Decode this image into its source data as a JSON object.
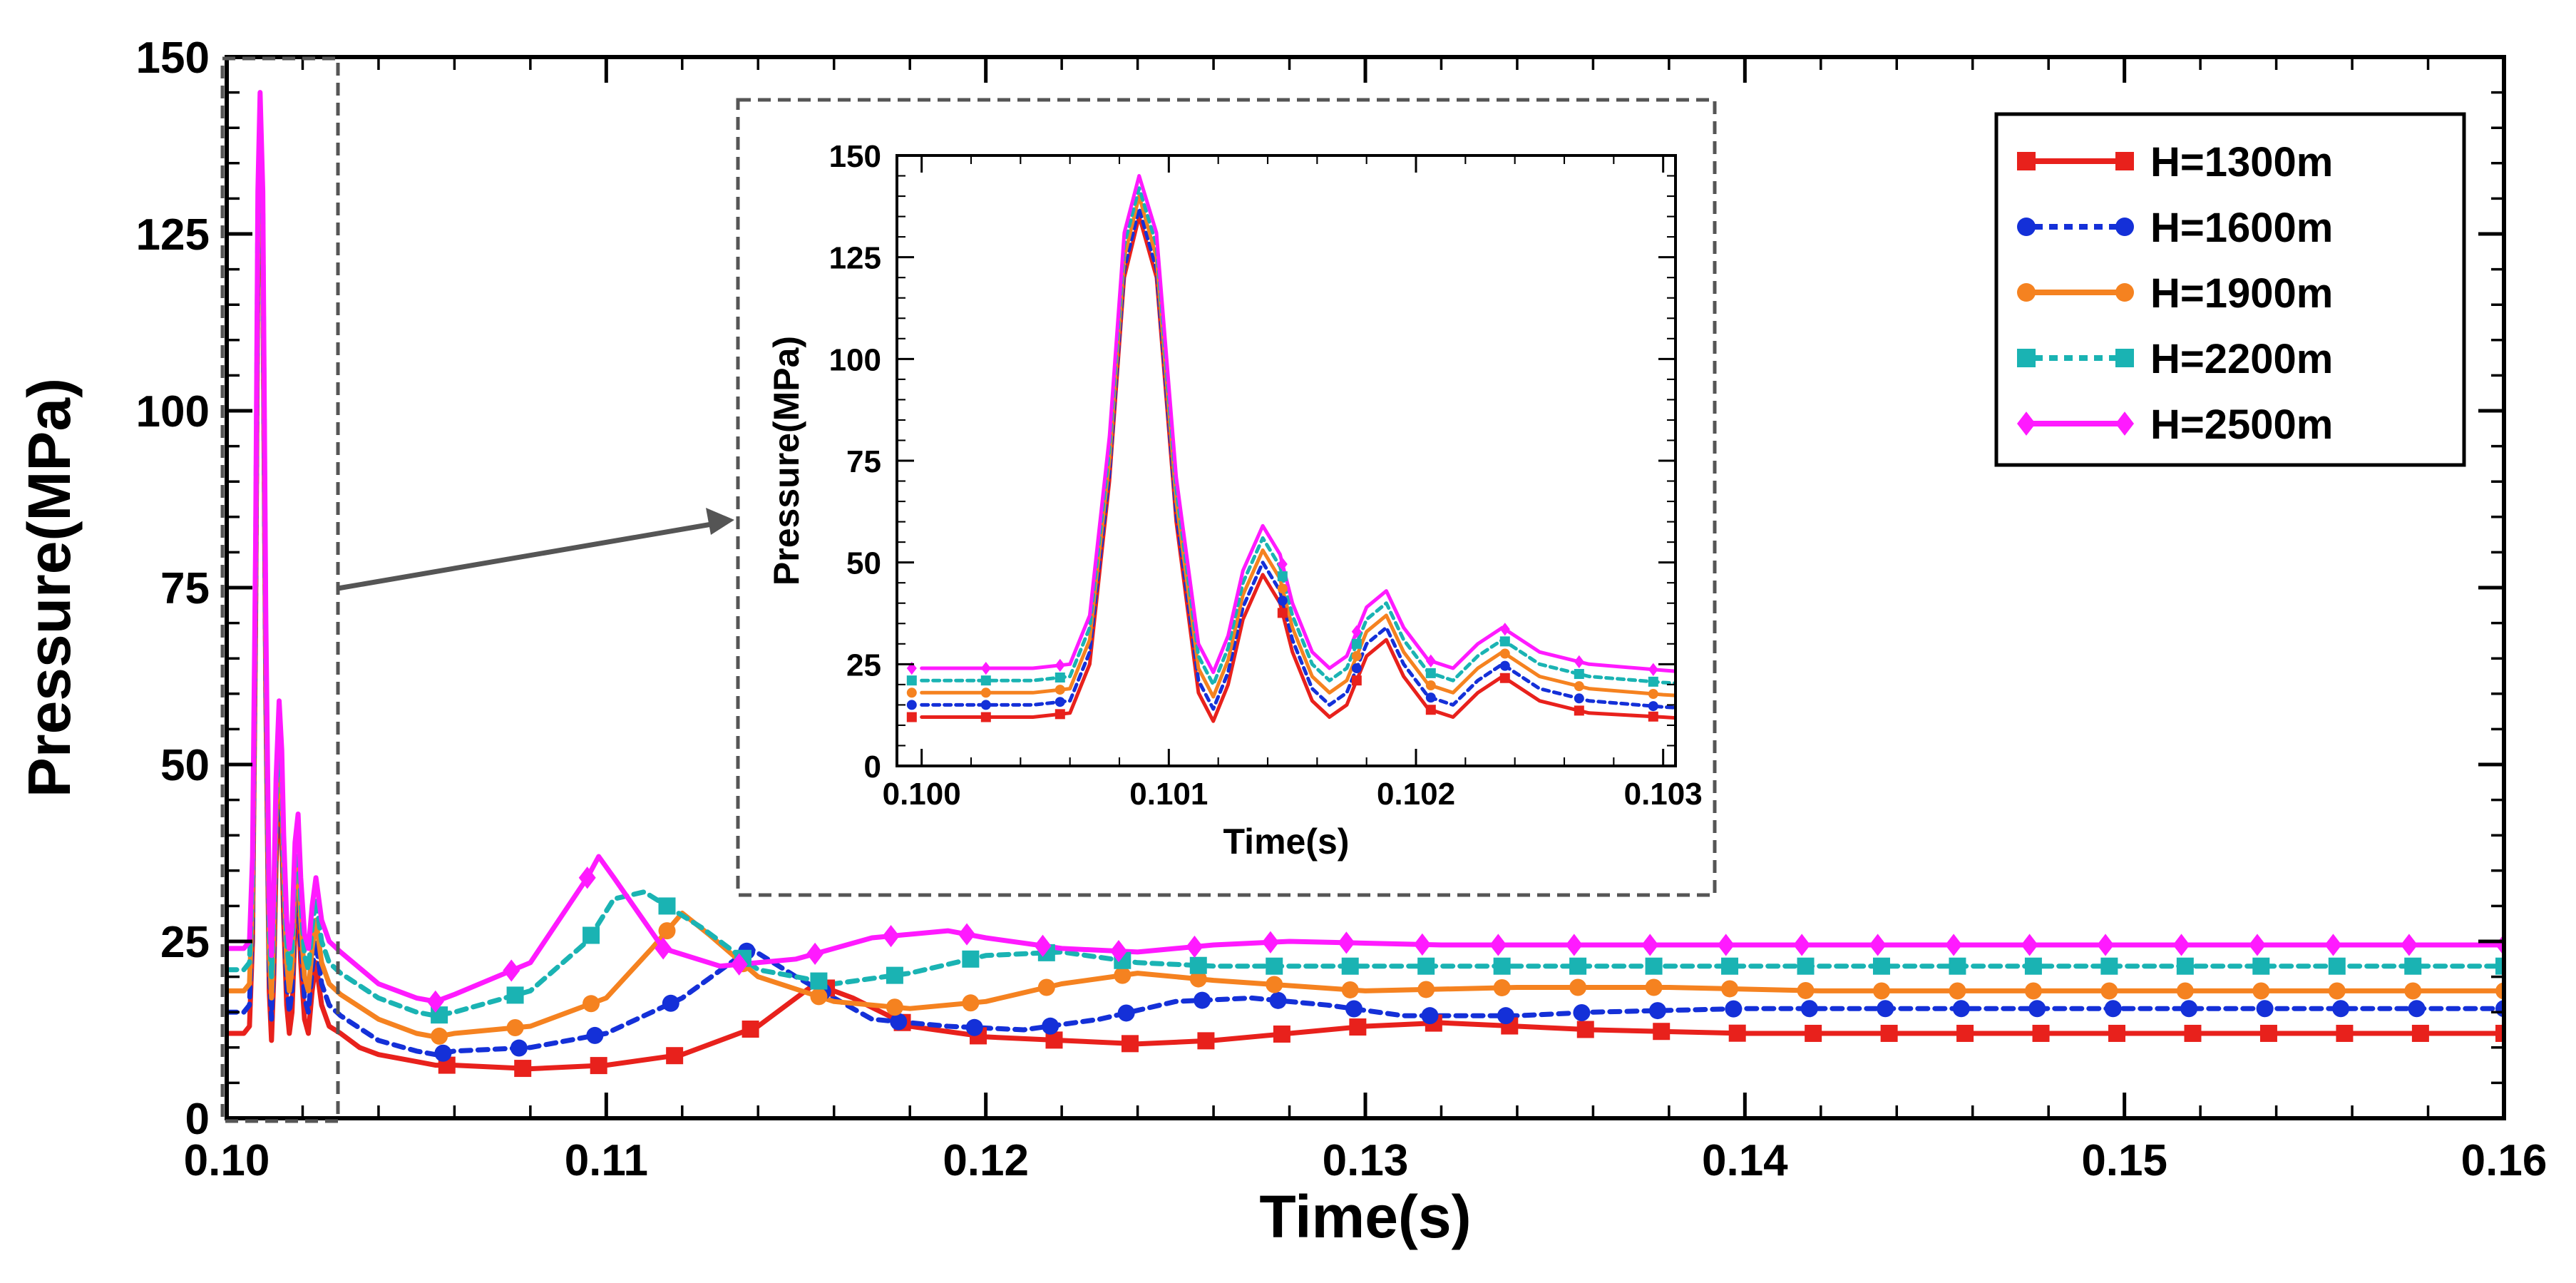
{
  "chart_data": {
    "type": "line",
    "main": {
      "xlabel": "Time(s)",
      "ylabel": "Pressure(MPa)",
      "xlim": [
        0.1,
        0.16
      ],
      "ylim": [
        0,
        150
      ],
      "xticks": [
        0.1,
        0.11,
        0.12,
        0.13,
        0.14,
        0.15,
        0.16
      ],
      "xtick_labels": [
        "0.10",
        "0.11",
        "0.12",
        "0.13",
        "0.14",
        "0.15",
        "0.16"
      ],
      "yticks": [
        0,
        25,
        50,
        75,
        100,
        125,
        150
      ],
      "ytick_labels": [
        "0",
        "25",
        "50",
        "75",
        "100",
        "125",
        "150"
      ],
      "zoom_region": [
        0.1,
        0.1031
      ]
    },
    "inset": {
      "xlabel": "Time(s)",
      "ylabel": "Pressure(MPa)",
      "xlim": [
        0.0999,
        0.10305
      ],
      "ylim": [
        0,
        150
      ],
      "xticks": [
        0.1,
        0.101,
        0.102,
        0.103
      ],
      "xtick_labels": [
        "0.100",
        "0.101",
        "0.102",
        "0.103"
      ],
      "yticks": [
        0,
        25,
        50,
        75,
        100,
        125,
        150
      ],
      "ytick_labels": [
        "0",
        "25",
        "50",
        "75",
        "100",
        "125",
        "150"
      ]
    },
    "series": [
      {
        "name": "H=1300m",
        "color": "#e8211c",
        "dash": "solid",
        "marker": "square",
        "x": [
          0.1,
          0.10045,
          0.1006,
          0.10068,
          0.10076,
          0.10082,
          0.10088,
          0.10095,
          0.10103,
          0.10112,
          0.10118,
          0.10124,
          0.1013,
          0.10138,
          0.10145,
          0.1015,
          0.10158,
          0.10165,
          0.10172,
          0.1018,
          0.10188,
          0.10195,
          0.10205,
          0.10215,
          0.10225,
          0.10235,
          0.1025,
          0.1027,
          0.103,
          0.1035,
          0.104,
          0.105,
          0.1055,
          0.106,
          0.108,
          0.11,
          0.112,
          0.114,
          0.1155,
          0.1165,
          0.118,
          0.12,
          0.122,
          0.124,
          0.126,
          0.128,
          0.13,
          0.132,
          0.134,
          0.136,
          0.14,
          0.145,
          0.15,
          0.155,
          0.16
        ],
        "y": [
          12,
          12,
          13,
          25,
          70,
          120,
          135,
          120,
          60,
          18,
          11,
          20,
          36,
          47,
          40,
          28,
          16,
          12,
          15,
          27,
          31,
          22,
          14,
          12,
          18,
          22,
          16,
          13,
          12,
          10,
          9,
          8,
          7.5,
          7.5,
          7,
          7.5,
          9,
          13,
          19,
          17,
          13,
          11.5,
          11,
          10.5,
          11,
          12,
          13,
          13.5,
          13,
          12.5,
          12,
          12,
          12,
          12,
          12
        ],
        "marker_x": [
          0.1058,
          0.1078,
          0.1098,
          0.1118,
          0.1138,
          0.1158,
          0.1178,
          0.1198,
          0.1218,
          0.1238,
          0.1258,
          0.1278,
          0.1298,
          0.1318,
          0.1338,
          0.1358,
          0.1378,
          0.1398,
          0.1418,
          0.1438,
          0.1458,
          0.1478,
          0.1498,
          0.1518,
          0.1538,
          0.1558,
          0.1578,
          0.16
        ]
      },
      {
        "name": "H=1600m",
        "color": "#1430d8",
        "dash": "dotted",
        "marker": "circle",
        "x": [
          0.1,
          0.10045,
          0.1006,
          0.10068,
          0.10076,
          0.10082,
          0.10088,
          0.10095,
          0.10103,
          0.10112,
          0.10118,
          0.10124,
          0.1013,
          0.10138,
          0.10145,
          0.1015,
          0.10158,
          0.10165,
          0.10172,
          0.1018,
          0.10188,
          0.10195,
          0.10205,
          0.10215,
          0.10225,
          0.10235,
          0.1025,
          0.1027,
          0.103,
          0.104,
          0.105,
          0.1055,
          0.106,
          0.108,
          0.11,
          0.112,
          0.1138,
          0.115,
          0.117,
          0.119,
          0.121,
          0.123,
          0.125,
          0.127,
          0.129,
          0.131,
          0.134,
          0.136,
          0.14,
          0.145,
          0.15,
          0.155,
          0.16
        ],
        "y": [
          15,
          15,
          16,
          28,
          72,
          122,
          137,
          122,
          62,
          21,
          14,
          23,
          39,
          50,
          43,
          31,
          19,
          15,
          18,
          30,
          34,
          25,
          17,
          15,
          21,
          25,
          19,
          16,
          14.5,
          11,
          9.5,
          9,
          9.5,
          10,
          12,
          17,
          24,
          20,
          14,
          13,
          12.5,
          14,
          16.5,
          17,
          16,
          14.5,
          14.5,
          15,
          15.5,
          15.5,
          15.5,
          15.5,
          15.5
        ],
        "marker_x": [
          0.1057,
          0.1077,
          0.1097,
          0.1117,
          0.1137,
          0.1157,
          0.1177,
          0.1197,
          0.1217,
          0.1237,
          0.1257,
          0.1277,
          0.1297,
          0.1317,
          0.1337,
          0.1357,
          0.1377,
          0.1397,
          0.1417,
          0.1437,
          0.1457,
          0.1477,
          0.1497,
          0.1517,
          0.1537,
          0.1557,
          0.1577,
          0.16
        ]
      },
      {
        "name": "H=1900m",
        "color": "#f58220",
        "dash": "solid",
        "marker": "circle",
        "x": [
          0.1,
          0.10045,
          0.1006,
          0.10068,
          0.10076,
          0.10082,
          0.10088,
          0.10095,
          0.10103,
          0.10112,
          0.10118,
          0.10124,
          0.1013,
          0.10138,
          0.10145,
          0.1015,
          0.10158,
          0.10165,
          0.10172,
          0.1018,
          0.10188,
          0.10195,
          0.10205,
          0.10215,
          0.10225,
          0.10235,
          0.1025,
          0.1027,
          0.103,
          0.104,
          0.105,
          0.1055,
          0.106,
          0.108,
          0.11,
          0.1112,
          0.112,
          0.1127,
          0.114,
          0.116,
          0.118,
          0.12,
          0.122,
          0.124,
          0.126,
          0.13,
          0.134,
          0.138,
          0.142,
          0.15,
          0.16
        ],
        "y": [
          18,
          18,
          19,
          31,
          75,
          125,
          140,
          125,
          65,
          24,
          17,
          26,
          42,
          53,
          46,
          34,
          22,
          18,
          21,
          33,
          37,
          28,
          20,
          18,
          24,
          28,
          22,
          19,
          17.5,
          14,
          12,
          11.5,
          12,
          13,
          17,
          24,
          29,
          26,
          20,
          16.5,
          15.5,
          16.5,
          19,
          20.5,
          19.5,
          18,
          18.5,
          18.5,
          18,
          18,
          18
        ],
        "marker_x": [
          0.1056,
          0.1076,
          0.1096,
          0.1116,
          0.1136,
          0.1156,
          0.1176,
          0.1196,
          0.1216,
          0.1236,
          0.1256,
          0.1276,
          0.1296,
          0.1316,
          0.1336,
          0.1356,
          0.1376,
          0.1396,
          0.1416,
          0.1436,
          0.1456,
          0.1476,
          0.1496,
          0.1516,
          0.1536,
          0.1556,
          0.1576,
          0.16
        ]
      },
      {
        "name": "H=2200m",
        "color": "#1ab3b3",
        "dash": "dotted",
        "marker": "square",
        "x": [
          0.1,
          0.10045,
          0.1006,
          0.10068,
          0.10076,
          0.10082,
          0.10088,
          0.10095,
          0.10103,
          0.10112,
          0.10118,
          0.10124,
          0.1013,
          0.10138,
          0.10145,
          0.1015,
          0.10158,
          0.10165,
          0.10172,
          0.1018,
          0.10188,
          0.10195,
          0.10205,
          0.10215,
          0.10225,
          0.10235,
          0.1025,
          0.1027,
          0.103,
          0.104,
          0.105,
          0.1055,
          0.106,
          0.108,
          0.1095,
          0.1102,
          0.111,
          0.1125,
          0.114,
          0.116,
          0.118,
          0.12,
          0.122,
          0.124,
          0.126,
          0.13,
          0.134,
          0.14,
          0.15,
          0.16
        ],
        "y": [
          21,
          21,
          22,
          34,
          78,
          128,
          142,
          128,
          68,
          27,
          20,
          29,
          45,
          56,
          49,
          37,
          25,
          21,
          24,
          36,
          40,
          31,
          23,
          21,
          27,
          31,
          25,
          22,
          20.5,
          17,
          15,
          14.5,
          15,
          18,
          25,
          31,
          32,
          27,
          21,
          19,
          20.5,
          23,
          23.5,
          22,
          21.5,
          21.5,
          21.5,
          21.5,
          21.5,
          21.5
        ],
        "marker_x": [
          0.1056,
          0.1076,
          0.1096,
          0.1116,
          0.1136,
          0.1156,
          0.1176,
          0.1196,
          0.1216,
          0.1236,
          0.1256,
          0.1276,
          0.1296,
          0.1316,
          0.1336,
          0.1356,
          0.1376,
          0.1396,
          0.1416,
          0.1436,
          0.1456,
          0.1476,
          0.1496,
          0.1516,
          0.1536,
          0.1556,
          0.1576,
          0.16
        ]
      },
      {
        "name": "H=2500m",
        "color": "#ff1aff",
        "dash": "solid",
        "marker": "diamond",
        "x": [
          0.1,
          0.10045,
          0.1006,
          0.10068,
          0.10076,
          0.10082,
          0.10088,
          0.10095,
          0.10103,
          0.10112,
          0.10118,
          0.10124,
          0.1013,
          0.10138,
          0.10145,
          0.1015,
          0.10158,
          0.10165,
          0.10172,
          0.1018,
          0.10188,
          0.10195,
          0.10205,
          0.10215,
          0.10225,
          0.10235,
          0.1025,
          0.1027,
          0.103,
          0.104,
          0.105,
          0.1055,
          0.106,
          0.108,
          0.1095,
          0.1098,
          0.1102,
          0.1115,
          0.113,
          0.115,
          0.117,
          0.119,
          0.12,
          0.122,
          0.124,
          0.126,
          0.128,
          0.132,
          0.136,
          0.14,
          0.15,
          0.16
        ],
        "y": [
          24,
          24,
          25,
          37,
          81,
          131,
          145,
          131,
          71,
          30,
          23,
          32,
          48,
          59,
          52,
          40,
          28,
          24,
          27,
          39,
          43,
          34,
          26,
          24,
          30,
          34,
          28,
          25,
          23.5,
          19,
          17,
          16.5,
          17.5,
          22,
          34,
          37,
          34,
          24,
          21.5,
          22.5,
          25.5,
          26.5,
          25.5,
          24,
          23.5,
          24.5,
          25,
          24.5,
          24.5,
          24.5,
          24.5,
          24.5
        ],
        "marker_x": [
          0.1055,
          0.1075,
          0.1095,
          0.1115,
          0.1135,
          0.1155,
          0.1175,
          0.1195,
          0.1215,
          0.1235,
          0.1255,
          0.1275,
          0.1295,
          0.1315,
          0.1335,
          0.1355,
          0.1375,
          0.1395,
          0.1415,
          0.1435,
          0.1455,
          0.1475,
          0.1495,
          0.1515,
          0.1535,
          0.1555,
          0.1575,
          0.16
        ]
      }
    ]
  }
}
